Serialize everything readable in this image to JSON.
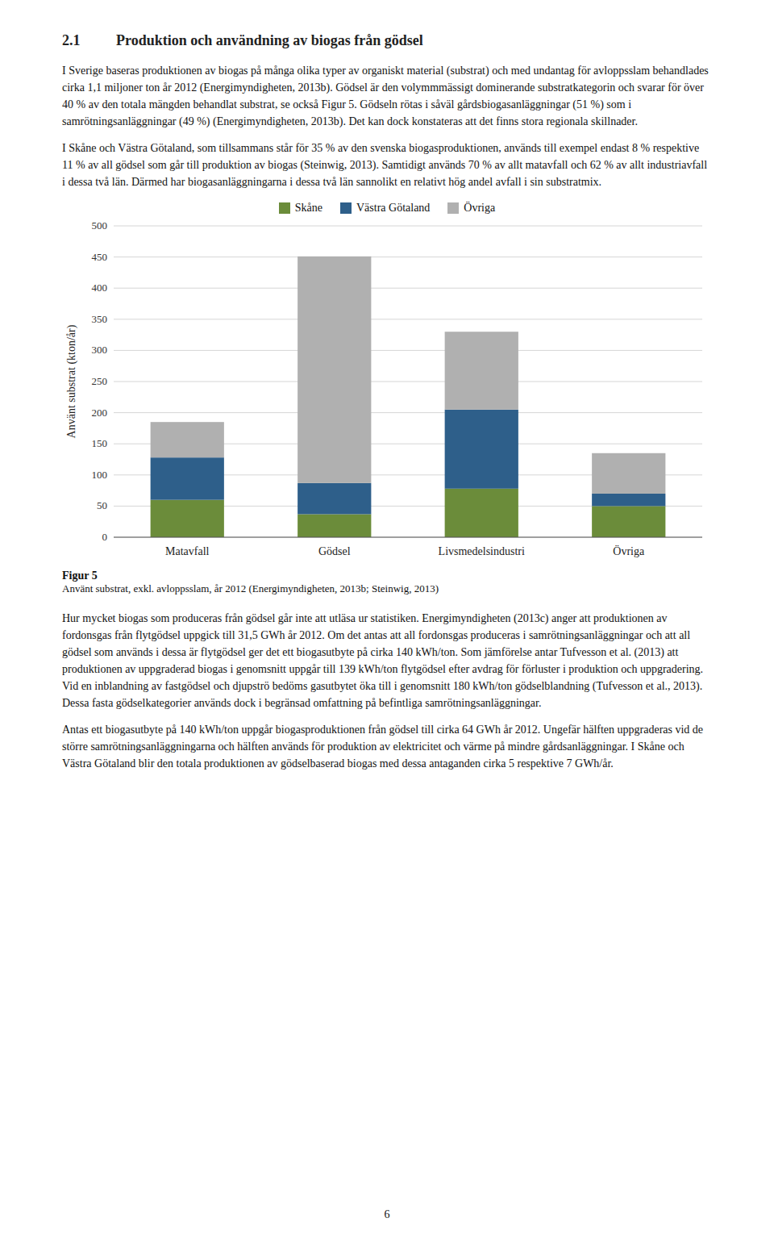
{
  "section_number": "2.1",
  "section_title": "Produktion och användning av biogas från gödsel",
  "paragraphs_before": [
    "I Sverige baseras produktionen av biogas på många olika typer av organiskt material (substrat) och med undantag för avloppsslam behandlades cirka 1,1 miljoner ton år 2012 (Energimyndigheten, 2013b). Gödsel är den volymmmässigt dominerande substratkategorin och svarar för över 40 % av den totala mängden behandlat substrat, se också Figur 5. Gödseln rötas i såväl gårdsbiogasanläggningar (51 %) som i samrötningsanläggningar (49 %) (Energimyndigheten, 2013b). Det kan dock konstateras att det finns stora regionala skillnader.",
    "I Skåne och Västra Götaland, som tillsammans står för 35 % av den svenska biogasproduktionen, används till exempel endast 8 % respektive 11 % av all gödsel som går till produktion av biogas (Steinwig, 2013). Samtidigt används 70 % av allt matavfall och 62 % av allt industriavfall i dessa två län. Därmed har biogasanläggningarna i dessa två län sannolikt en relativt hög andel avfall i sin substratmix."
  ],
  "chart_data": {
    "type": "bar",
    "stacked": true,
    "categories": [
      "Matavfall",
      "Gödsel",
      "Livsmedelsindustri",
      "Övriga"
    ],
    "series": [
      {
        "name": "Skåne",
        "color": "#6b8c3a",
        "values": [
          60,
          37,
          78,
          50
        ]
      },
      {
        "name": "Västra Götaland",
        "color": "#2e5f8a",
        "values": [
          68,
          50,
          127,
          20
        ]
      },
      {
        "name": "Övriga",
        "color": "#b0b0b0",
        "values": [
          57,
          364,
          125,
          65
        ]
      }
    ],
    "ylabel": "Använt substrat (kton/år)",
    "ylim": [
      0,
      500
    ],
    "yticks": [
      0,
      50,
      100,
      150,
      200,
      250,
      300,
      350,
      400,
      450,
      500
    ],
    "grid": true,
    "legend": "top"
  },
  "caption_label": "Figur 5",
  "caption": "Använt substrat, exkl. avloppsslam, år 2012 (Energimyndigheten, 2013b; Steinwig, 2013)",
  "paragraphs_after": [
    "Hur mycket biogas som produceras från gödsel går inte att utläsa ur statistiken. Energimyndigheten (2013c) anger att produktionen av fordonsgas från flytgödsel uppgick till 31,5 GWh år 2012. Om det antas att all fordonsgas produceras i samrötningsanläggningar och att all gödsel som används i dessa är flytgödsel ger det ett biogasutbyte på cirka 140 kWh/ton. Som jämförelse antar Tufvesson et al. (2013) att produktionen av uppgraderad biogas i genomsnitt uppgår till 139 kWh/ton flytgödsel efter avdrag för förluster i produktion och uppgradering. Vid en inblandning av fastgödsel och djupströ bedöms gasutbytet öka till i genomsnitt 180 kWh/ton gödselblandning (Tufvesson et al., 2013). Dessa fasta gödselkategorier används dock i begränsad omfattning på befintliga samrötningsanläggningar.",
    "Antas ett biogasutbyte på 140 kWh/ton uppgår biogasproduktionen från gödsel till cirka 64 GWh år 2012. Ungefär hälften uppgraderas vid de större samrötningsanläggningarna och hälften används för produktion av elektricitet och värme på mindre gårdsanläggningar. I Skåne och Västra Götaland blir den totala produktionen av gödselbaserad biogas med dessa antaganden cirka 5 respektive 7 GWh/år."
  ],
  "page_number": "6"
}
